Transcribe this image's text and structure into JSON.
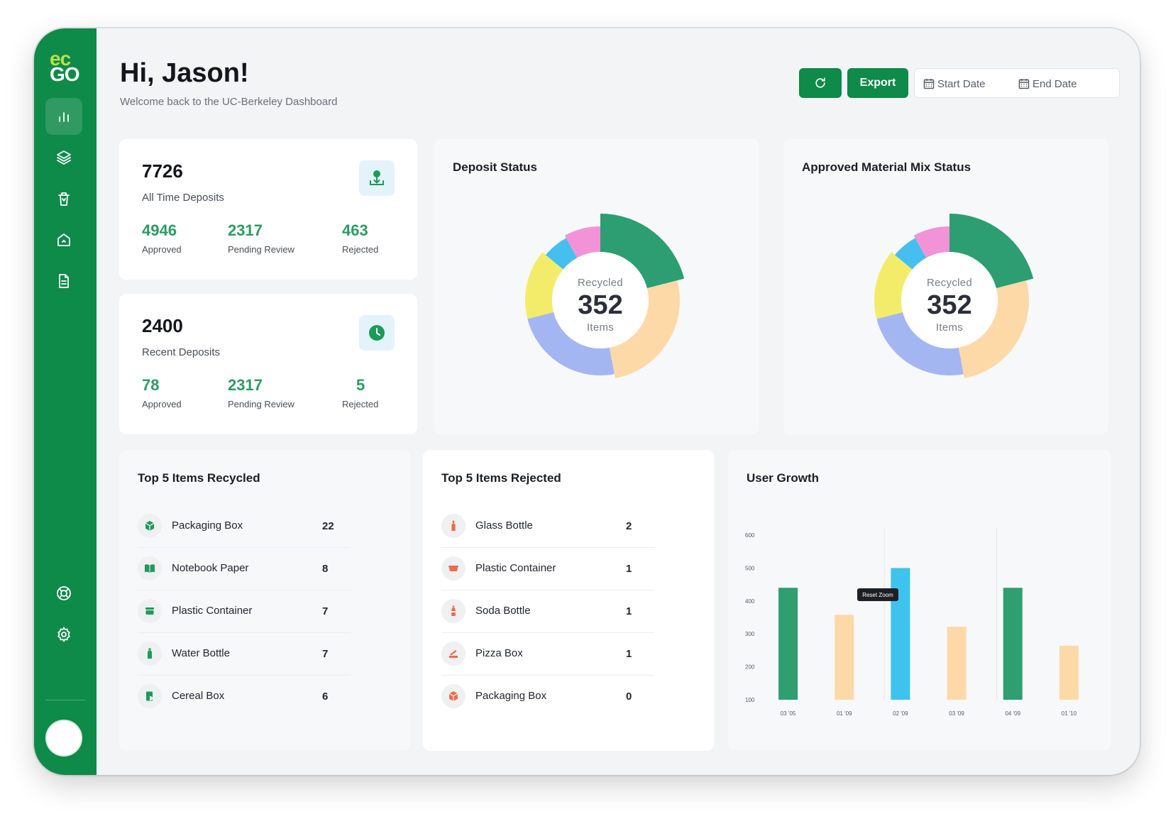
{
  "brand": {
    "line1": "ec",
    "line2": "GO"
  },
  "sidebar": {
    "items": [
      {
        "name": "dashboard",
        "icon": "bar-chart-icon"
      },
      {
        "name": "layers",
        "icon": "layers-icon"
      },
      {
        "name": "bin",
        "icon": "trash-bin-icon"
      },
      {
        "name": "home",
        "icon": "home-icon"
      },
      {
        "name": "reports",
        "icon": "document-icon"
      },
      {
        "name": "help",
        "icon": "lifebuoy-icon"
      },
      {
        "name": "settings",
        "icon": "gear-icon"
      }
    ]
  },
  "header": {
    "greeting": "Hi, Jason!",
    "subtitle": "Welcome back to the UC-Berkeley Dashboard",
    "export_label": "Export",
    "start_date": "Start Date",
    "end_date": "End Date"
  },
  "all_time": {
    "total": "7726",
    "label": "All Time Deposits",
    "approved": "4946",
    "approved_label": "Approved",
    "pending": "2317",
    "pending_label": "Pending Review",
    "rejected": "463",
    "rejected_label": "Rejected"
  },
  "recent": {
    "total": "2400",
    "label": "Recent Deposits",
    "approved": "78",
    "approved_label": "Approved",
    "pending": "2317",
    "pending_label": "Pending Review",
    "rejected": "5",
    "rejected_label": "Rejected"
  },
  "deposit_status": {
    "title": "Deposit Status",
    "center_top": "Recycled",
    "center_value": "352",
    "center_bottom": "Items"
  },
  "material_mix": {
    "title": "Approved Material Mix Status",
    "center_top": "Recycled",
    "center_value": "352",
    "center_bottom": "Items"
  },
  "donut_segments": [
    {
      "value": 21,
      "color": "#2c9e72"
    },
    {
      "value": 26,
      "color": "#fdd9a8"
    },
    {
      "value": 24,
      "color": "#a4b6f2"
    },
    {
      "value": 15,
      "color": "#f3ec6b"
    },
    {
      "value": 6,
      "color": "#45c0ee"
    },
    {
      "value": 8,
      "color": "#f293d8"
    }
  ],
  "top_recycled": {
    "title": "Top 5 Items Recycled",
    "items": [
      {
        "name": "Packaging Box",
        "count": "22",
        "icon": "box-icon"
      },
      {
        "name": "Notebook Paper",
        "count": "8",
        "icon": "notebook-icon"
      },
      {
        "name": "Plastic Container",
        "count": "7",
        "icon": "container-icon"
      },
      {
        "name": "Water Bottle",
        "count": "7",
        "icon": "bottle-icon"
      },
      {
        "name": "Cereal Box",
        "count": "6",
        "icon": "cereal-box-icon"
      }
    ]
  },
  "top_rejected": {
    "title": "Top 5 Items Rejected",
    "items": [
      {
        "name": "Glass Bottle",
        "count": "2",
        "icon": "glass-bottle-icon"
      },
      {
        "name": "Plastic Container",
        "count": "1",
        "icon": "container-icon"
      },
      {
        "name": "Soda Bottle",
        "count": "1",
        "icon": "soda-bottle-icon"
      },
      {
        "name": "Pizza Box",
        "count": "1",
        "icon": "pizza-box-icon"
      },
      {
        "name": "Packaging Box",
        "count": "0",
        "icon": "box-icon"
      }
    ]
  },
  "user_growth": {
    "title": "User Growth",
    "tooltip": "Reset Zoom"
  },
  "chart_data": {
    "type": "bar",
    "categories": [
      "03 '05",
      "01 '09",
      "02 '09",
      "03 '09",
      "04 '09",
      "01 '10"
    ],
    "values": [
      440,
      358,
      500,
      322,
      440,
      264
    ],
    "colors": [
      "#2f9e70",
      "#fdd9a8",
      "#3ec3ee",
      "#fdd9a8",
      "#2f9e70",
      "#fdd9a8"
    ],
    "yticks": [
      600,
      500,
      400,
      300,
      200,
      100
    ],
    "ylim": [
      100,
      600
    ],
    "xlabel": "",
    "ylabel": ""
  }
}
